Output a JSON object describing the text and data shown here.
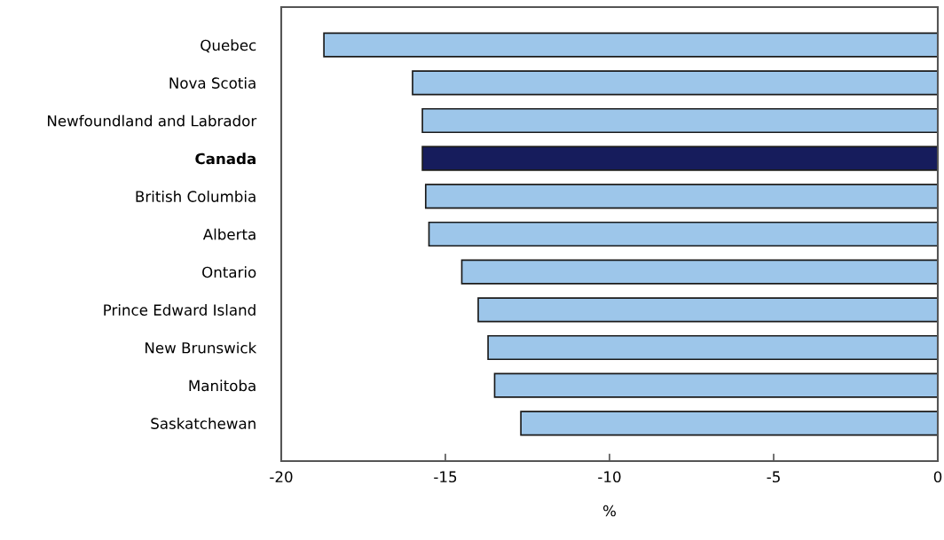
{
  "chart_data": {
    "type": "bar",
    "orientation": "horizontal",
    "xlabel": "%",
    "categories": [
      "Quebec",
      "Nova Scotia",
      "Newfoundland and Labrador",
      "Canada",
      "British Columbia",
      "Alberta",
      "Ontario",
      "Prince Edward Island",
      "New Brunswick",
      "Manitoba",
      "Saskatchewan"
    ],
    "values": [
      -18.7,
      -16.0,
      -15.7,
      -15.7,
      -15.6,
      -15.5,
      -14.5,
      -14.0,
      -13.7,
      -13.5,
      -12.7
    ],
    "colors": [
      "#9dc6ea",
      "#9dc6ea",
      "#9dc6ea",
      "#161c5c",
      "#9dc6ea",
      "#9dc6ea",
      "#9dc6ea",
      "#9dc6ea",
      "#9dc6ea",
      "#9dc6ea",
      "#9dc6ea"
    ],
    "xlim": [
      -20,
      0
    ],
    "xticks": [
      -20,
      -15,
      -10,
      -5,
      0
    ],
    "grid": false
  }
}
